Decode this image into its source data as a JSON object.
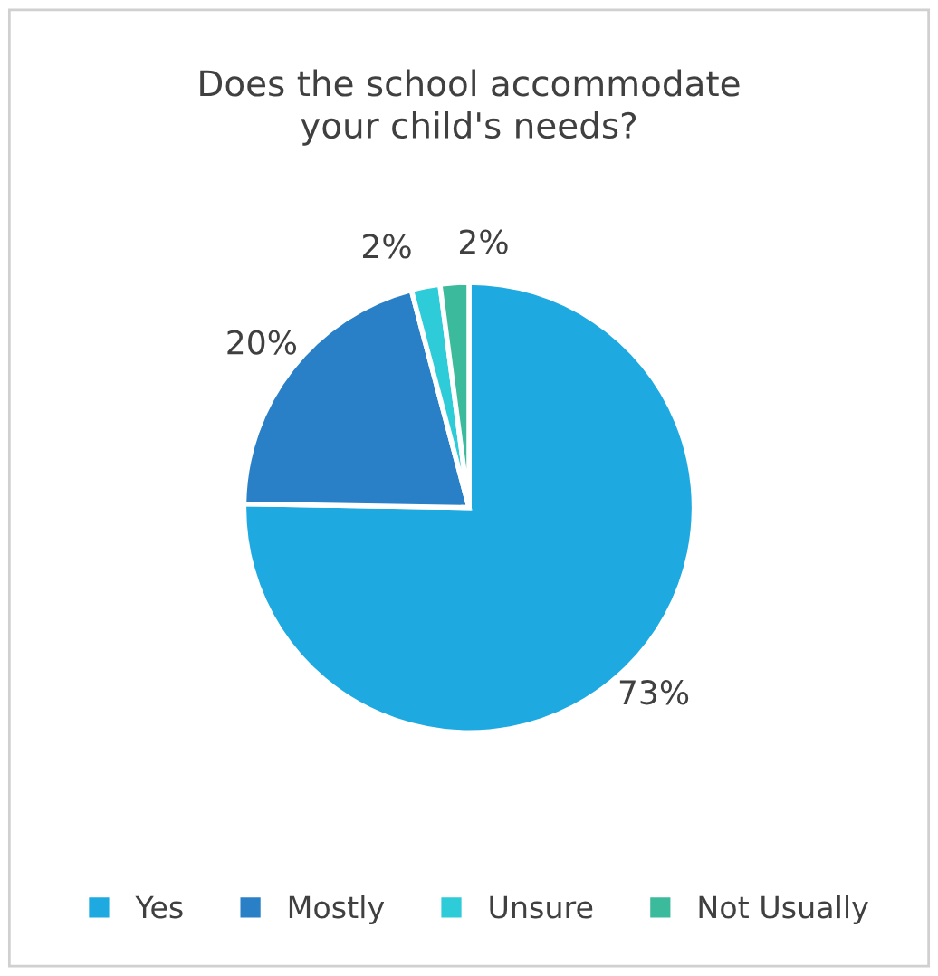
{
  "chart_data": {
    "type": "pie",
    "title": "Does the school accommodate\nyour child's needs?",
    "categories": [
      "Yes",
      "Mostly",
      "Unsure",
      "Not Usually"
    ],
    "values": [
      73,
      20,
      2,
      2
    ],
    "colors": [
      "#1eaae1",
      "#2a80c6",
      "#2ecbd8",
      "#3cbb9c"
    ],
    "value_labels": [
      "73%",
      "20%",
      "2%",
      "2%"
    ],
    "legend": "bottom"
  }
}
